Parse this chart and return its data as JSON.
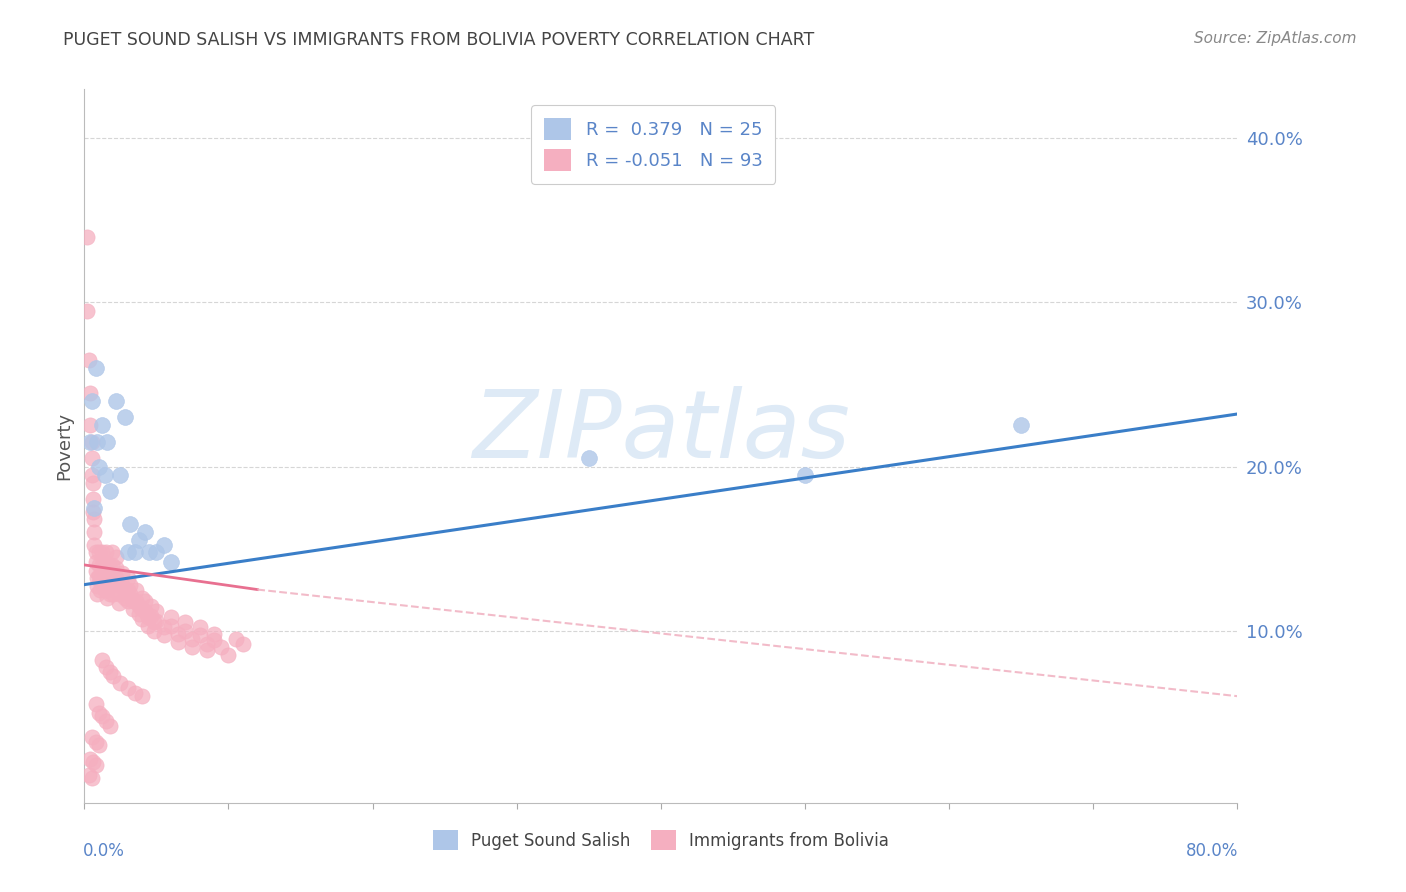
{
  "title": "PUGET SOUND SALISH VS IMMIGRANTS FROM BOLIVIA POVERTY CORRELATION CHART",
  "source": "Source: ZipAtlas.com",
  "ylabel": "Poverty",
  "y_ticks": [
    0.1,
    0.2,
    0.3,
    0.4
  ],
  "y_tick_labels": [
    "10.0%",
    "20.0%",
    "30.0%",
    "40.0%"
  ],
  "x_range": [
    0.0,
    0.8
  ],
  "y_range": [
    -0.005,
    0.43
  ],
  "blue_color": "#aec6e8",
  "pink_color": "#f5afc0",
  "blue_line_color": "#3a7ec8",
  "pink_line_color": "#e87090",
  "pink_line_dash_color": "#f0b0c0",
  "blue_scatter": [
    [
      0.004,
      0.215
    ],
    [
      0.005,
      0.24
    ],
    [
      0.007,
      0.175
    ],
    [
      0.008,
      0.26
    ],
    [
      0.009,
      0.215
    ],
    [
      0.01,
      0.2
    ],
    [
      0.012,
      0.225
    ],
    [
      0.014,
      0.195
    ],
    [
      0.016,
      0.215
    ],
    [
      0.018,
      0.185
    ],
    [
      0.022,
      0.24
    ],
    [
      0.025,
      0.195
    ],
    [
      0.028,
      0.23
    ],
    [
      0.03,
      0.148
    ],
    [
      0.032,
      0.165
    ],
    [
      0.035,
      0.148
    ],
    [
      0.038,
      0.155
    ],
    [
      0.042,
      0.16
    ],
    [
      0.045,
      0.148
    ],
    [
      0.05,
      0.148
    ],
    [
      0.055,
      0.152
    ],
    [
      0.06,
      0.142
    ],
    [
      0.35,
      0.205
    ],
    [
      0.5,
      0.195
    ],
    [
      0.65,
      0.225
    ]
  ],
  "pink_scatter": [
    [
      0.002,
      0.34
    ],
    [
      0.002,
      0.295
    ],
    [
      0.003,
      0.265
    ],
    [
      0.004,
      0.245
    ],
    [
      0.004,
      0.225
    ],
    [
      0.005,
      0.215
    ],
    [
      0.005,
      0.205
    ],
    [
      0.005,
      0.195
    ],
    [
      0.006,
      0.19
    ],
    [
      0.006,
      0.18
    ],
    [
      0.006,
      0.172
    ],
    [
      0.007,
      0.168
    ],
    [
      0.007,
      0.16
    ],
    [
      0.007,
      0.152
    ],
    [
      0.008,
      0.148
    ],
    [
      0.008,
      0.142
    ],
    [
      0.008,
      0.136
    ],
    [
      0.009,
      0.132
    ],
    [
      0.009,
      0.127
    ],
    [
      0.009,
      0.122
    ],
    [
      0.01,
      0.148
    ],
    [
      0.01,
      0.14
    ],
    [
      0.01,
      0.133
    ],
    [
      0.011,
      0.13
    ],
    [
      0.011,
      0.125
    ],
    [
      0.012,
      0.148
    ],
    [
      0.012,
      0.14
    ],
    [
      0.012,
      0.133
    ],
    [
      0.013,
      0.128
    ],
    [
      0.014,
      0.125
    ],
    [
      0.014,
      0.135
    ],
    [
      0.014,
      0.142
    ],
    [
      0.015,
      0.148
    ],
    [
      0.015,
      0.14
    ],
    [
      0.015,
      0.133
    ],
    [
      0.016,
      0.13
    ],
    [
      0.016,
      0.125
    ],
    [
      0.016,
      0.12
    ],
    [
      0.017,
      0.14
    ],
    [
      0.017,
      0.133
    ],
    [
      0.018,
      0.128
    ],
    [
      0.018,
      0.122
    ],
    [
      0.019,
      0.148
    ],
    [
      0.019,
      0.14
    ],
    [
      0.02,
      0.135
    ],
    [
      0.02,
      0.128
    ],
    [
      0.02,
      0.122
    ],
    [
      0.022,
      0.145
    ],
    [
      0.022,
      0.138
    ],
    [
      0.022,
      0.132
    ],
    [
      0.024,
      0.128
    ],
    [
      0.024,
      0.122
    ],
    [
      0.024,
      0.117
    ],
    [
      0.026,
      0.135
    ],
    [
      0.026,
      0.128
    ],
    [
      0.028,
      0.125
    ],
    [
      0.028,
      0.12
    ],
    [
      0.03,
      0.132
    ],
    [
      0.03,
      0.125
    ],
    [
      0.03,
      0.118
    ],
    [
      0.032,
      0.128
    ],
    [
      0.032,
      0.122
    ],
    [
      0.034,
      0.118
    ],
    [
      0.034,
      0.113
    ],
    [
      0.036,
      0.125
    ],
    [
      0.036,
      0.118
    ],
    [
      0.038,
      0.115
    ],
    [
      0.038,
      0.11
    ],
    [
      0.04,
      0.12
    ],
    [
      0.04,
      0.113
    ],
    [
      0.04,
      0.107
    ],
    [
      0.042,
      0.118
    ],
    [
      0.042,
      0.112
    ],
    [
      0.044,
      0.108
    ],
    [
      0.044,
      0.103
    ],
    [
      0.046,
      0.115
    ],
    [
      0.046,
      0.109
    ],
    [
      0.048,
      0.105
    ],
    [
      0.048,
      0.1
    ],
    [
      0.05,
      0.112
    ],
    [
      0.05,
      0.106
    ],
    [
      0.055,
      0.102
    ],
    [
      0.055,
      0.097
    ],
    [
      0.06,
      0.108
    ],
    [
      0.06,
      0.103
    ],
    [
      0.065,
      0.098
    ],
    [
      0.065,
      0.093
    ],
    [
      0.07,
      0.105
    ],
    [
      0.07,
      0.1
    ],
    [
      0.075,
      0.095
    ],
    [
      0.075,
      0.09
    ],
    [
      0.08,
      0.102
    ],
    [
      0.08,
      0.097
    ],
    [
      0.085,
      0.092
    ],
    [
      0.085,
      0.088
    ],
    [
      0.09,
      0.098
    ],
    [
      0.09,
      0.094
    ],
    [
      0.095,
      0.09
    ],
    [
      0.1,
      0.085
    ],
    [
      0.105,
      0.095
    ],
    [
      0.11,
      0.092
    ],
    [
      0.012,
      0.082
    ],
    [
      0.015,
      0.078
    ],
    [
      0.018,
      0.075
    ],
    [
      0.02,
      0.072
    ],
    [
      0.025,
      0.068
    ],
    [
      0.03,
      0.065
    ],
    [
      0.035,
      0.062
    ],
    [
      0.04,
      0.06
    ],
    [
      0.008,
      0.055
    ],
    [
      0.01,
      0.05
    ],
    [
      0.012,
      0.048
    ],
    [
      0.015,
      0.045
    ],
    [
      0.018,
      0.042
    ],
    [
      0.005,
      0.035
    ],
    [
      0.008,
      0.032
    ],
    [
      0.01,
      0.03
    ],
    [
      0.004,
      0.022
    ],
    [
      0.006,
      0.02
    ],
    [
      0.008,
      0.018
    ],
    [
      0.003,
      0.012
    ],
    [
      0.005,
      0.01
    ]
  ],
  "blue_line": [
    [
      0.0,
      0.128
    ],
    [
      0.8,
      0.232
    ]
  ],
  "pink_line_solid": [
    [
      0.0,
      0.14
    ],
    [
      0.12,
      0.125
    ]
  ],
  "pink_line_dashed": [
    [
      0.12,
      0.125
    ],
    [
      0.8,
      0.06
    ]
  ],
  "watermark_text": "ZIPatlas",
  "watermark_color": "#c8dcf0",
  "background_color": "#ffffff",
  "grid_color": "#cccccc",
  "tick_color": "#5a85c8"
}
